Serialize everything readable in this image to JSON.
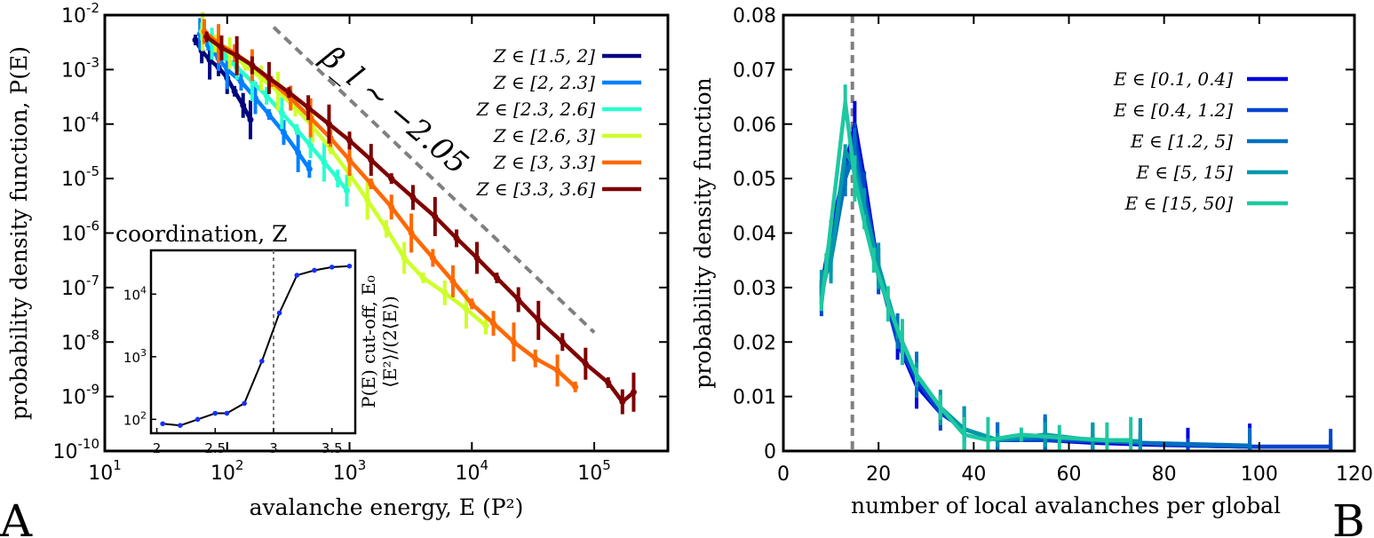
{
  "chart_data": [
    {
      "panel": "A",
      "type": "line",
      "xlabel": "avalanche energy, E (P²)",
      "ylabel": "probability density function, P(E)",
      "xscale": "log",
      "yscale": "log",
      "xlim": [
        10,
        400000
      ],
      "ylim": [
        1e-10,
        0.01
      ],
      "x_ticks": [
        10,
        100,
        1000,
        10000,
        100000
      ],
      "x_tick_labels": [
        {
          "base": "10",
          "exp": "1"
        },
        {
          "base": "10",
          "exp": "2"
        },
        {
          "base": "10",
          "exp": "3"
        },
        {
          "base": "10",
          "exp": "4"
        },
        {
          "base": "10",
          "exp": "5"
        }
      ],
      "y_ticks": [
        0.01,
        0.001,
        0.0001,
        1e-05,
        1e-06,
        1e-07,
        1e-08,
        1e-09,
        1e-10
      ],
      "y_tick_labels": [
        {
          "base": "10",
          "exp": "-2"
        },
        {
          "base": "10",
          "exp": "-3"
        },
        {
          "base": "10",
          "exp": "-4"
        },
        {
          "base": "10",
          "exp": "-5"
        },
        {
          "base": "10",
          "exp": "-6"
        },
        {
          "base": "10",
          "exp": "-7"
        },
        {
          "base": "10",
          "exp": "-8"
        },
        {
          "base": "10",
          "exp": "-9"
        },
        {
          "base": "10",
          "exp": "-10"
        }
      ],
      "annotation": {
        "text": "β_l ∼ −2.05",
        "line_start": [
          240,
          0.006
        ],
        "line_end": [
          100000,
          1.5e-08
        ],
        "color": "#808080"
      },
      "legend_placement": "top-right",
      "series": [
        {
          "name": "Z ∈ [1.5, 2]",
          "color": "#00007f",
          "points": [
            [
              55,
              0.0035
            ],
            [
              62,
              0.0022
            ],
            [
              72,
              0.0015
            ],
            [
              85,
              0.0011
            ],
            [
              100,
              0.0007
            ],
            [
              115,
              0.0004
            ],
            [
              135,
              0.00022
            ],
            [
              155,
              0.00012
            ]
          ]
        },
        {
          "name": "Z ∈ [2, 2.3]",
          "color": "#0080ff",
          "points": [
            [
              60,
              0.0045
            ],
            [
              70,
              0.0028
            ],
            [
              85,
              0.0016
            ],
            [
              100,
              0.001
            ],
            [
              130,
              0.0006
            ],
            [
              170,
              0.0003
            ],
            [
              220,
              0.00015
            ],
            [
              290,
              7e-05
            ],
            [
              380,
              3e-05
            ],
            [
              470,
              1.5e-05
            ]
          ]
        },
        {
          "name": "Z ∈ [2.3, 2.6]",
          "color": "#29ffce",
          "points": [
            [
              62,
              0.005
            ],
            [
              75,
              0.003
            ],
            [
              95,
              0.0018
            ],
            [
              120,
              0.0011
            ],
            [
              160,
              0.0006
            ],
            [
              210,
              0.00033
            ],
            [
              280,
              0.00016
            ],
            [
              370,
              8e-05
            ],
            [
              480,
              4e-05
            ],
            [
              620,
              2e-05
            ],
            [
              800,
              1e-05
            ],
            [
              950,
              6e-06
            ]
          ]
        },
        {
          "name": "Z ∈ [2.6, 3]",
          "color": "#ceff29",
          "points": [
            [
              63,
              0.005
            ],
            [
              80,
              0.003
            ],
            [
              105,
              0.002
            ],
            [
              140,
              0.0012
            ],
            [
              190,
              0.0007
            ],
            [
              260,
              0.0004
            ],
            [
              360,
              0.0002
            ],
            [
              500,
              9e-05
            ],
            [
              700,
              3.5e-05
            ],
            [
              1000,
              1.2e-05
            ],
            [
              1400,
              4e-06
            ],
            [
              2000,
              1.2e-06
            ],
            [
              2800,
              3.5e-07
            ],
            [
              4000,
              1.5e-07
            ],
            [
              6000,
              8e-08
            ],
            [
              9000,
              4e-08
            ],
            [
              13000,
              2e-08
            ]
          ]
        },
        {
          "name": "Z ∈ [3, 3.3]",
          "color": "#ff6800",
          "points": [
            [
              65,
              0.005
            ],
            [
              85,
              0.003
            ],
            [
              115,
              0.002
            ],
            [
              160,
              0.0012
            ],
            [
              230,
              0.0006
            ],
            [
              330,
              0.0003
            ],
            [
              480,
              0.00013
            ],
            [
              700,
              5.5e-05
            ],
            [
              1000,
              2.2e-05
            ],
            [
              1500,
              8e-06
            ],
            [
              2200,
              3e-06
            ],
            [
              3200,
              1e-06
            ],
            [
              4800,
              3.5e-07
            ],
            [
              7000,
              1.3e-07
            ],
            [
              10000,
              5e-08
            ],
            [
              15000,
              2.2e-08
            ],
            [
              22000,
              1e-08
            ],
            [
              33000,
              5e-09
            ],
            [
              50000,
              3e-09
            ],
            [
              70000,
              1.5e-09
            ]
          ]
        },
        {
          "name": "Z ∈ [3.3, 3.6]",
          "color": "#7f0000",
          "points": [
            [
              68,
              0.004
            ],
            [
              90,
              0.0025
            ],
            [
              120,
              0.0018
            ],
            [
              160,
              0.0012
            ],
            [
              220,
              0.0007
            ],
            [
              320,
              0.00038
            ],
            [
              460,
              0.0002
            ],
            [
              680,
              0.0001
            ],
            [
              1000,
              5e-05
            ],
            [
              1500,
              2.2e-05
            ],
            [
              2200,
              1e-05
            ],
            [
              3300,
              4.5e-06
            ],
            [
              5000,
              2e-06
            ],
            [
              7500,
              8e-07
            ],
            [
              11000,
              3.5e-07
            ],
            [
              16000,
              1.5e-07
            ],
            [
              24000,
              6e-08
            ],
            [
              35000,
              2.5e-08
            ],
            [
              55000,
              1e-08
            ],
            [
              85000,
              4e-09
            ],
            [
              130000,
              1.8e-09
            ],
            [
              170000,
              8e-10
            ],
            [
              210000,
              1.2e-09
            ]
          ]
        }
      ],
      "inset": {
        "title": "coordination, Z",
        "ylabel_lines": [
          "P(E) cut-off, E₀",
          "⟨E²⟩/(2⟨E⟩)"
        ],
        "xlim": [
          1.95,
          3.7
        ],
        "ylim_log": [
          60,
          50000
        ],
        "x_ticks": [
          2,
          2.5,
          3,
          3.5
        ],
        "x_tick_labels": [
          "2",
          "2.5",
          "3",
          "3.5"
        ],
        "y_ticks": [
          100,
          1000,
          10000
        ],
        "y_tick_labels": [
          {
            "base": "10",
            "exp": "2"
          },
          {
            "base": "10",
            "exp": "3"
          },
          {
            "base": "10",
            "exp": "4"
          }
        ],
        "vline_x": 3.0,
        "points": [
          [
            2.05,
            85
          ],
          [
            2.2,
            80
          ],
          [
            2.35,
            100
          ],
          [
            2.5,
            125
          ],
          [
            2.6,
            125
          ],
          [
            2.75,
            180
          ],
          [
            2.9,
            850
          ],
          [
            3.05,
            5000
          ],
          [
            3.2,
            20000
          ],
          [
            3.35,
            24000
          ],
          [
            3.5,
            27000
          ],
          [
            3.65,
            28000
          ]
        ]
      },
      "letter": "A"
    },
    {
      "panel": "B",
      "type": "line",
      "xlabel": "number of local avalanches per global",
      "ylabel": "probability density function",
      "xlim": [
        0,
        120
      ],
      "ylim": [
        0,
        0.08
      ],
      "x_ticks": [
        0,
        20,
        40,
        60,
        80,
        100,
        120
      ],
      "x_tick_labels": [
        "0",
        "20",
        "40",
        "60",
        "80",
        "100",
        "120"
      ],
      "y_ticks": [
        0,
        0.01,
        0.02,
        0.03,
        0.04,
        0.05,
        0.06,
        0.07,
        0.08
      ],
      "y_tick_labels": [
        "0",
        "0.01",
        "0.02",
        "0.03",
        "0.04",
        "0.05",
        "0.06",
        "0.07",
        "0.08"
      ],
      "vline_x": 14.5,
      "legend_placement": "top-right",
      "series": [
        {
          "name": "E ∈ [0.1, 0.4]",
          "color": "#0000dd",
          "points": [
            [
              8,
              0.03
            ],
            [
              10,
              0.04
            ],
            [
              13,
              0.052
            ],
            [
              15,
              0.06
            ],
            [
              17,
              0.05
            ],
            [
              20,
              0.033
            ],
            [
              24,
              0.02
            ],
            [
              28,
              0.012
            ],
            [
              33,
              0.007
            ],
            [
              38,
              0.004
            ],
            [
              45,
              0.002
            ],
            [
              55,
              0.002
            ],
            [
              65,
              0.0015
            ],
            [
              75,
              0.0012
            ],
            [
              85,
              0.001
            ],
            [
              98,
              0.0008
            ],
            [
              115,
              0.0008
            ]
          ]
        },
        {
          "name": "E ∈ [0.4, 1.2]",
          "color": "#0044cc",
          "points": [
            [
              8,
              0.028
            ],
            [
              10,
              0.038
            ],
            [
              13,
              0.05
            ],
            [
              15,
              0.058
            ],
            [
              17,
              0.048
            ],
            [
              20,
              0.033
            ],
            [
              24,
              0.02
            ],
            [
              28,
              0.013
            ],
            [
              33,
              0.007
            ],
            [
              38,
              0.004
            ],
            [
              45,
              0.002
            ],
            [
              55,
              0.002
            ],
            [
              65,
              0.0018
            ],
            [
              75,
              0.0015
            ],
            [
              85,
              0.001
            ],
            [
              98,
              0.0008
            ],
            [
              115,
              0.0008
            ]
          ]
        },
        {
          "name": "E ∈ [1.2, 5]",
          "color": "#0070c0",
          "points": [
            [
              8,
              0.03
            ],
            [
              10,
              0.035
            ],
            [
              13,
              0.05
            ],
            [
              15,
              0.055
            ],
            [
              17,
              0.045
            ],
            [
              20,
              0.032
            ],
            [
              24,
              0.022
            ],
            [
              28,
              0.014
            ],
            [
              33,
              0.008
            ],
            [
              38,
              0.004
            ],
            [
              45,
              0.002
            ],
            [
              55,
              0.0025
            ],
            [
              65,
              0.002
            ],
            [
              75,
              0.0015
            ],
            [
              98,
              0.001
            ]
          ]
        },
        {
          "name": "E ∈ [5, 15]",
          "color": "#0099aa",
          "points": [
            [
              8,
              0.03
            ],
            [
              10,
              0.035
            ],
            [
              13,
              0.055
            ],
            [
              15,
              0.052
            ],
            [
              17,
              0.045
            ],
            [
              20,
              0.034
            ],
            [
              24,
              0.022
            ],
            [
              28,
              0.014
            ],
            [
              33,
              0.008
            ],
            [
              38,
              0.004
            ],
            [
              45,
              0.002
            ],
            [
              55,
              0.003
            ],
            [
              65,
              0.002
            ],
            [
              75,
              0.0018
            ]
          ]
        },
        {
          "name": "E ∈ [15, 50]",
          "color": "#1ec8a0",
          "points": [
            [
              8,
              0.027
            ],
            [
              9,
              0.034
            ],
            [
              13,
              0.064
            ],
            [
              15,
              0.05
            ],
            [
              17,
              0.042
            ],
            [
              19,
              0.035
            ],
            [
              22,
              0.027
            ],
            [
              25,
              0.02
            ],
            [
              28,
              0.014
            ],
            [
              33,
              0.008
            ],
            [
              38,
              0.003
            ],
            [
              43,
              0.002
            ],
            [
              50,
              0.003
            ],
            [
              58,
              0.0025
            ],
            [
              68,
              0.002
            ],
            [
              73,
              0.002
            ]
          ]
        }
      ],
      "letter": "B"
    }
  ]
}
